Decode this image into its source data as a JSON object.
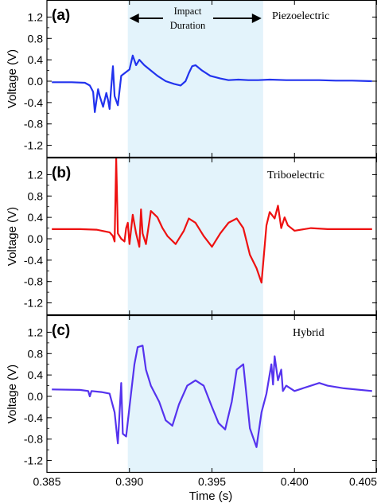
{
  "colors": {
    "piezoelectric": "#2233ee",
    "triboelectric": "#ee1111",
    "hybrid": "#5533ee",
    "impact_region": "#e3f3fb"
  },
  "x_axis": {
    "label": "Time (s)",
    "ticks": [
      "0.385",
      "0.390",
      "0.395",
      "0.400",
      "0.405"
    ]
  },
  "impact": {
    "label_line1": "Impact",
    "label_line2": "Duration"
  },
  "chart_data": [
    {
      "type": "line",
      "panel_tag": "(a)",
      "title": "Piezoelectric",
      "xlabel": "Time (s)",
      "ylabel": "Voltage (V)",
      "xlim": [
        0.385,
        0.405
      ],
      "ylim": [
        -1.4,
        1.4
      ],
      "yticks": [
        "1.2",
        "0.8",
        "0.4",
        "0.0",
        "-0.4",
        "-0.8",
        "-1.2"
      ],
      "impact_region": [
        0.3899,
        0.3981
      ],
      "series": [
        {
          "color": "#2233ee",
          "x": [
            0.3853,
            0.3865,
            0.3873,
            0.3876,
            0.3878,
            0.3879,
            0.3881,
            0.3882,
            0.3884,
            0.3886,
            0.3887,
            0.3888,
            0.3889,
            0.389,
            0.3891,
            0.3893,
            0.3895,
            0.39,
            0.3902,
            0.3904,
            0.3906,
            0.3909,
            0.3913,
            0.3917,
            0.3922,
            0.3927,
            0.3931,
            0.3934,
            0.3936,
            0.3938,
            0.394,
            0.3944,
            0.3949,
            0.3955,
            0.396,
            0.3966,
            0.3972,
            0.3978,
            0.3985,
            0.3995,
            0.4005,
            0.4015,
            0.4025,
            0.4035,
            0.4047
          ],
          "y": [
            -0.02,
            -0.02,
            -0.03,
            -0.08,
            -0.2,
            -0.58,
            -0.15,
            -0.28,
            -0.48,
            -0.22,
            -0.35,
            -0.52,
            -0.1,
            0.28,
            -0.28,
            -0.45,
            0.1,
            0.22,
            0.48,
            0.3,
            0.4,
            0.3,
            0.2,
            0.1,
            0.0,
            -0.05,
            -0.08,
            0.0,
            0.15,
            0.28,
            0.3,
            0.2,
            0.1,
            0.05,
            0.02,
            0.03,
            0.02,
            0.02,
            0.03,
            0.02,
            0.02,
            0.02,
            0.01,
            0.01,
            0.0
          ]
        }
      ]
    },
    {
      "type": "line",
      "panel_tag": "(b)",
      "title": "Triboelectric",
      "xlabel": "Time (s)",
      "ylabel": "Voltage (V)",
      "xlim": [
        0.385,
        0.405
      ],
      "ylim": [
        -1.4,
        1.4
      ],
      "yticks": [
        "1.2",
        "0.8",
        "0.4",
        "0.0",
        "-0.4",
        "-0.8",
        "-1.2"
      ],
      "impact_region": [
        0.3899,
        0.3981
      ],
      "series": [
        {
          "color": "#ee1111",
          "x": [
            0.3853,
            0.387,
            0.388,
            0.3888,
            0.389,
            0.3891,
            0.3892,
            0.3893,
            0.3895,
            0.3897,
            0.3898,
            0.3899,
            0.39,
            0.3902,
            0.3904,
            0.3906,
            0.3907,
            0.3908,
            0.391,
            0.3913,
            0.3917,
            0.392,
            0.3923,
            0.3928,
            0.3933,
            0.3936,
            0.394,
            0.3945,
            0.395,
            0.3955,
            0.396,
            0.3965,
            0.3969,
            0.3973,
            0.3977,
            0.398,
            0.3983,
            0.3985,
            0.3988,
            0.399,
            0.3992,
            0.3994,
            0.3996,
            0.4,
            0.401,
            0.402,
            0.403,
            0.4047
          ],
          "y": [
            0.18,
            0.18,
            0.17,
            0.12,
            0.05,
            -0.05,
            1.5,
            0.1,
            0.0,
            -0.05,
            0.2,
            0.3,
            -0.1,
            0.45,
            0.1,
            -0.15,
            0.55,
            0.1,
            -0.1,
            0.52,
            0.4,
            0.2,
            0.05,
            -0.1,
            0.15,
            0.38,
            0.3,
            0.05,
            -0.15,
            0.1,
            0.3,
            0.38,
            0.2,
            -0.3,
            -0.55,
            -0.82,
            0.25,
            0.5,
            0.38,
            0.62,
            0.2,
            0.4,
            0.25,
            0.15,
            0.2,
            0.18,
            0.18,
            0.18
          ]
        }
      ]
    },
    {
      "type": "line",
      "panel_tag": "(c)",
      "title": "Hybrid",
      "xlabel": "Time (s)",
      "ylabel": "Voltage (V)",
      "xlim": [
        0.385,
        0.405
      ],
      "ylim": [
        -1.4,
        1.4
      ],
      "yticks": [
        "1.2",
        "0.8",
        "0.4",
        "0.0",
        "-0.4",
        "-0.8",
        "-1.2"
      ],
      "impact_region": [
        0.3899,
        0.3981
      ],
      "series": [
        {
          "color": "#5533ee",
          "x": [
            0.3853,
            0.387,
            0.3875,
            0.3876,
            0.3877,
            0.3883,
            0.3888,
            0.3891,
            0.3893,
            0.3895,
            0.3896,
            0.3898,
            0.39,
            0.3903,
            0.3905,
            0.3908,
            0.391,
            0.3913,
            0.3918,
            0.3922,
            0.3926,
            0.393,
            0.3935,
            0.394,
            0.3945,
            0.395,
            0.3954,
            0.3958,
            0.3962,
            0.3965,
            0.3969,
            0.3973,
            0.3977,
            0.398,
            0.3983,
            0.3986,
            0.3987,
            0.3988,
            0.399,
            0.3992,
            0.3993,
            0.3995,
            0.4,
            0.4005,
            0.401,
            0.4015,
            0.402,
            0.403,
            0.4047
          ],
          "y": [
            0.13,
            0.12,
            0.1,
            0.0,
            0.1,
            0.08,
            0.05,
            -0.3,
            -0.88,
            0.25,
            -0.7,
            -0.75,
            -0.2,
            0.6,
            0.92,
            0.95,
            0.5,
            0.2,
            -0.1,
            -0.45,
            -0.55,
            -0.15,
            0.2,
            0.3,
            0.2,
            -0.2,
            -0.5,
            -0.62,
            -0.1,
            0.5,
            0.6,
            -0.6,
            -0.95,
            -0.3,
            0.05,
            0.6,
            0.22,
            0.75,
            0.3,
            0.5,
            0.1,
            0.2,
            0.1,
            0.15,
            0.2,
            0.25,
            0.2,
            0.15,
            0.1
          ]
        }
      ]
    }
  ]
}
